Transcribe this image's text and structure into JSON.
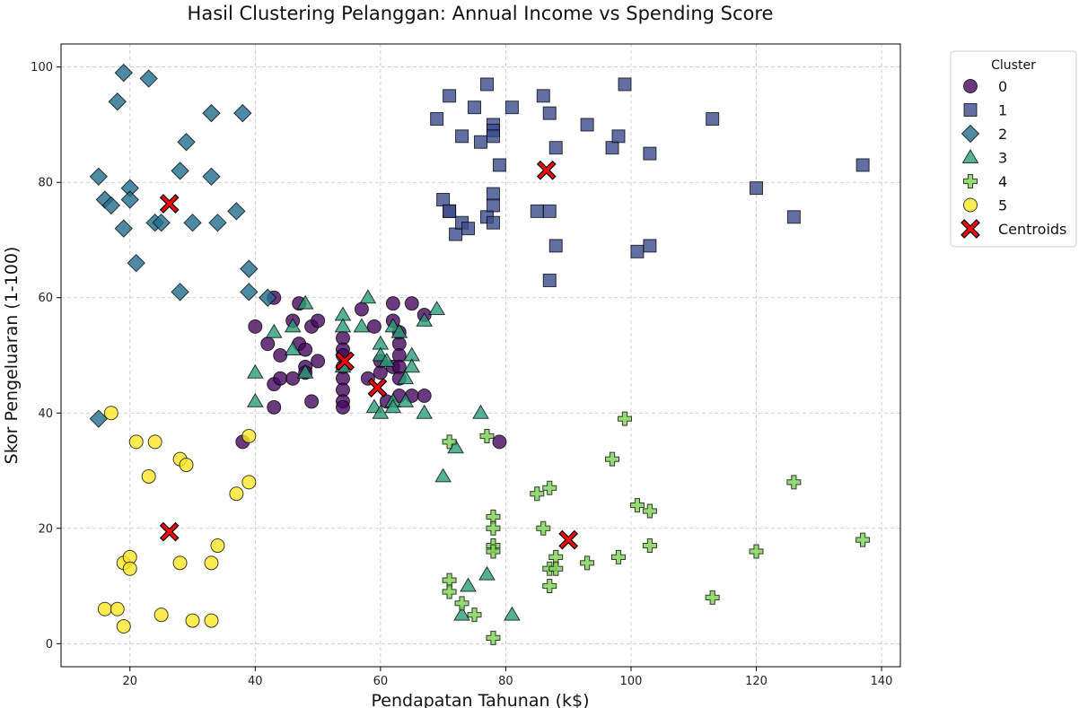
{
  "chart_data": {
    "type": "scatter",
    "title": "Hasil Clustering Pelanggan: Annual Income vs Spending Score",
    "xlabel": "Pendapatan Tahunan (k$)",
    "ylabel": "Skor Pengeluaran (1-100)",
    "xlim": [
      9,
      143
    ],
    "ylim": [
      -4,
      104
    ],
    "xticks": [
      20,
      40,
      60,
      80,
      100,
      120,
      140
    ],
    "yticks": [
      0,
      20,
      40,
      60,
      80,
      100
    ],
    "grid": true,
    "legend": {
      "title": "Cluster",
      "placement": "outside-top-right"
    },
    "series": [
      {
        "name": "0",
        "marker": "circle",
        "color": "#46085c",
        "points": [
          [
            38,
            35
          ],
          [
            40,
            55
          ],
          [
            42,
            52
          ],
          [
            43,
            60
          ],
          [
            43,
            45
          ],
          [
            43,
            41
          ],
          [
            44,
            50
          ],
          [
            44,
            46
          ],
          [
            46,
            56
          ],
          [
            46,
            46
          ],
          [
            47,
            59
          ],
          [
            47,
            52
          ],
          [
            48,
            51
          ],
          [
            48,
            48
          ],
          [
            48,
            47
          ],
          [
            49,
            55
          ],
          [
            49,
            42
          ],
          [
            50,
            56
          ],
          [
            50,
            49
          ],
          [
            54,
            53
          ],
          [
            54,
            51
          ],
          [
            54,
            50
          ],
          [
            54,
            48
          ],
          [
            54,
            46
          ],
          [
            54,
            44
          ],
          [
            54,
            42
          ],
          [
            54,
            41
          ],
          [
            57,
            58
          ],
          [
            58,
            46
          ],
          [
            59,
            55
          ],
          [
            60,
            49
          ],
          [
            60,
            47
          ],
          [
            61,
            42
          ],
          [
            62,
            59
          ],
          [
            62,
            56
          ],
          [
            62,
            48
          ],
          [
            63,
            54
          ],
          [
            63,
            52
          ],
          [
            63,
            50
          ],
          [
            63,
            48
          ],
          [
            63,
            46
          ],
          [
            63,
            43
          ],
          [
            65,
            59
          ],
          [
            65,
            43
          ],
          [
            67,
            57
          ],
          [
            67,
            43
          ],
          [
            79,
            35
          ]
        ]
      },
      {
        "name": "1",
        "marker": "square",
        "color": "#3b4b8c",
        "points": [
          [
            69,
            91
          ],
          [
            70,
            77
          ],
          [
            71,
            95
          ],
          [
            71,
            75
          ],
          [
            71,
            75
          ],
          [
            72,
            71
          ],
          [
            73,
            88
          ],
          [
            73,
            73
          ],
          [
            74,
            72
          ],
          [
            75,
            93
          ],
          [
            76,
            87
          ],
          [
            77,
            97
          ],
          [
            77,
            74
          ],
          [
            78,
            90
          ],
          [
            78,
            89
          ],
          [
            78,
            88
          ],
          [
            78,
            78
          ],
          [
            78,
            76
          ],
          [
            78,
            73
          ],
          [
            79,
            83
          ],
          [
            81,
            93
          ],
          [
            85,
            75
          ],
          [
            86,
            95
          ],
          [
            87,
            92
          ],
          [
            87,
            75
          ],
          [
            87,
            63
          ],
          [
            88,
            86
          ],
          [
            88,
            69
          ],
          [
            93,
            90
          ],
          [
            97,
            86
          ],
          [
            98,
            88
          ],
          [
            99,
            97
          ],
          [
            101,
            68
          ],
          [
            103,
            85
          ],
          [
            103,
            69
          ],
          [
            113,
            91
          ],
          [
            120,
            79
          ],
          [
            126,
            74
          ],
          [
            137,
            83
          ]
        ]
      },
      {
        "name": "2",
        "marker": "diamond",
        "color": "#1f6e8c",
        "points": [
          [
            15,
            81
          ],
          [
            15,
            39
          ],
          [
            16,
            77
          ],
          [
            17,
            76
          ],
          [
            18,
            94
          ],
          [
            19,
            99
          ],
          [
            19,
            72
          ],
          [
            20,
            79
          ],
          [
            20,
            77
          ],
          [
            21,
            66
          ],
          [
            23,
            98
          ],
          [
            24,
            73
          ],
          [
            25,
            73
          ],
          [
            28,
            82
          ],
          [
            28,
            61
          ],
          [
            29,
            87
          ],
          [
            30,
            73
          ],
          [
            33,
            92
          ],
          [
            33,
            81
          ],
          [
            34,
            73
          ],
          [
            37,
            75
          ],
          [
            38,
            92
          ],
          [
            39,
            65
          ],
          [
            39,
            61
          ],
          [
            42,
            60
          ]
        ]
      },
      {
        "name": "3",
        "marker": "triangle",
        "color": "#2a9d7a",
        "points": [
          [
            40,
            47
          ],
          [
            40,
            42
          ],
          [
            43,
            54
          ],
          [
            46,
            55
          ],
          [
            46,
            51
          ],
          [
            48,
            59
          ],
          [
            48,
            47
          ],
          [
            54,
            57
          ],
          [
            54,
            55
          ],
          [
            54,
            48
          ],
          [
            57,
            55
          ],
          [
            58,
            60
          ],
          [
            59,
            41
          ],
          [
            60,
            52
          ],
          [
            60,
            50
          ],
          [
            60,
            40
          ],
          [
            61,
            49
          ],
          [
            62,
            55
          ],
          [
            62,
            42
          ],
          [
            62,
            41
          ],
          [
            63,
            54
          ],
          [
            64,
            46
          ],
          [
            64,
            42
          ],
          [
            65,
            50
          ],
          [
            65,
            48
          ],
          [
            67,
            56
          ],
          [
            67,
            40
          ],
          [
            69,
            58
          ],
          [
            70,
            29
          ],
          [
            72,
            34
          ],
          [
            73,
            5
          ],
          [
            74,
            10
          ],
          [
            76,
            40
          ],
          [
            77,
            12
          ],
          [
            81,
            5
          ]
        ]
      },
      {
        "name": "4",
        "marker": "plus",
        "color": "#7ad151",
        "points": [
          [
            71,
            35
          ],
          [
            71,
            11
          ],
          [
            71,
            9
          ],
          [
            73,
            7
          ],
          [
            75,
            5
          ],
          [
            77,
            36
          ],
          [
            78,
            22
          ],
          [
            78,
            20
          ],
          [
            78,
            17
          ],
          [
            78,
            16
          ],
          [
            78,
            1
          ],
          [
            85,
            26
          ],
          [
            86,
            20
          ],
          [
            87,
            27
          ],
          [
            87,
            13
          ],
          [
            87,
            10
          ],
          [
            88,
            15
          ],
          [
            88,
            13
          ],
          [
            93,
            14
          ],
          [
            97,
            32
          ],
          [
            98,
            15
          ],
          [
            99,
            39
          ],
          [
            101,
            24
          ],
          [
            103,
            23
          ],
          [
            103,
            17
          ],
          [
            113,
            8
          ],
          [
            120,
            16
          ],
          [
            126,
            28
          ],
          [
            137,
            18
          ]
        ]
      },
      {
        "name": "5",
        "marker": "circle",
        "color": "#fde725",
        "points": [
          [
            16,
            6
          ],
          [
            17,
            40
          ],
          [
            18,
            6
          ],
          [
            19,
            14
          ],
          [
            19,
            3
          ],
          [
            20,
            15
          ],
          [
            20,
            13
          ],
          [
            21,
            35
          ],
          [
            23,
            29
          ],
          [
            24,
            35
          ],
          [
            25,
            5
          ],
          [
            28,
            32
          ],
          [
            28,
            14
          ],
          [
            29,
            31
          ],
          [
            30,
            4
          ],
          [
            33,
            14
          ],
          [
            33,
            4
          ],
          [
            34,
            17
          ],
          [
            37,
            26
          ],
          [
            39,
            36
          ],
          [
            39,
            28
          ]
        ]
      }
    ],
    "centroids": {
      "name": "Centroids",
      "marker": "x",
      "color": "#ff0000",
      "points": [
        [
          26.3,
          76.3
        ],
        [
          86.5,
          82.1
        ],
        [
          54.3,
          49.0
        ],
        [
          59.5,
          44.4
        ],
        [
          90.0,
          18.0
        ],
        [
          26.3,
          19.4
        ]
      ]
    }
  }
}
